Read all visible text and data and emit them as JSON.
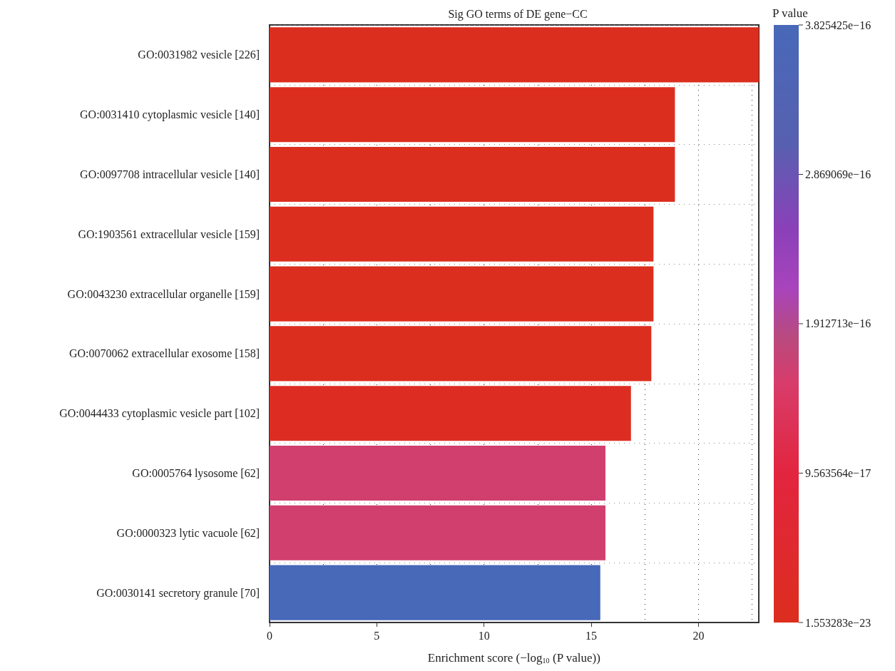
{
  "chart_data": {
    "type": "bar",
    "orientation": "horizontal",
    "title": "Sig GO terms of DE gene−CC",
    "xlabel": "Enrichment score (−log$_{10}$ (P value))",
    "clabel": "P value",
    "categories": [
      "GO:0031982 vesicle [226]",
      "GO:0031410 cytoplasmic vesicle [140]",
      "GO:0097708 intracellular vesicle [140]",
      "GO:1903561 extracellular vesicle [159]",
      "GO:0043230 extracellular organelle [159]",
      "GO:0070062 extracellular exosome [158]",
      "GO:0044433 cytoplasmic vesicle part [102]",
      "GO:0005764 lysosome [62]",
      "GO:0000323 lytic vacuole [62]",
      "GO:0030141 secretory granule [70]"
    ],
    "values": [
      22.81,
      18.9,
      18.9,
      17.9,
      17.9,
      17.8,
      16.85,
      15.66,
      15.66,
      15.42
    ],
    "cvalues": [
      1.553283e-23,
      1.3e-19,
      1.3e-19,
      1.2e-18,
      1.2e-18,
      1.5e-18,
      1.4e-17,
      1.6e-16,
      1.6e-16,
      3.825425e-16
    ],
    "clim": [
      1.553283e-23,
      3.825425e-16
    ],
    "cticks": [
      {
        "value": 1.553283e-23,
        "label": "1.553283e−23"
      },
      {
        "value": 9.563564e-17,
        "label": "9.563564e−17"
      },
      {
        "value": 1.912713e-16,
        "label": "1.912713e−16"
      },
      {
        "value": 2.869069e-16,
        "label": "2.869069e−16"
      },
      {
        "value": 3.825425e-16,
        "label": "3.825425e−16"
      }
    ],
    "xlim": [
      0,
      22.81
    ],
    "xticks": [
      0,
      {
        "value": 2.5,
        "label": null
      },
      5,
      {
        "value": 7.5,
        "label": null
      },
      10,
      {
        "value": 12.5,
        "label": null
      },
      15,
      {
        "value": 17.5,
        "label": null
      },
      20,
      {
        "value": 22.5,
        "label": null
      }
    ],
    "grid": true
  }
}
